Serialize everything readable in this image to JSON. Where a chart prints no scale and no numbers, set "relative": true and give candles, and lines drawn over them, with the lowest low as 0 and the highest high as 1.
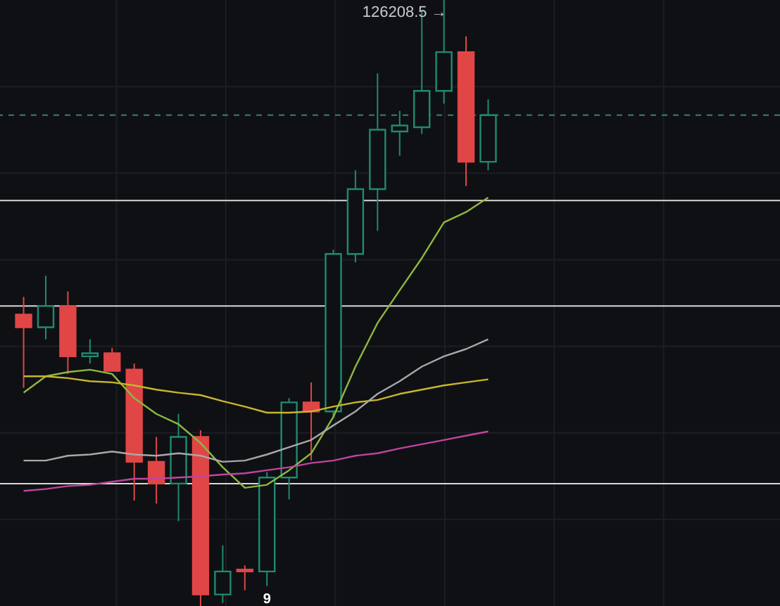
{
  "chart_data": {
    "type": "candlestick",
    "relative": true,
    "grid": true,
    "tick_labels": false,
    "categories": [
      null,
      null,
      null,
      null,
      null,
      null,
      null,
      null,
      null,
      null,
      null,
      null,
      null,
      null,
      null,
      null,
      null,
      null,
      null,
      null,
      null,
      null
    ],
    "ohlc": [
      [
        0.481,
        0.51,
        0.36,
        0.46
      ],
      [
        0.46,
        0.545,
        0.44,
        0.495
      ],
      [
        0.495,
        0.519,
        0.383,
        0.412
      ],
      [
        0.412,
        0.44,
        0.4,
        0.417
      ],
      [
        0.417,
        0.426,
        0.388,
        0.388
      ],
      [
        0.39,
        0.4,
        0.174,
        0.238
      ],
      [
        0.238,
        0.279,
        0.169,
        0.202
      ],
      [
        0.202,
        0.317,
        0.14,
        0.279
      ],
      [
        0.279,
        0.29,
        0.0,
        0.019
      ],
      [
        0.019,
        0.1,
        0.005,
        0.057
      ],
      [
        0.06,
        0.067,
        0.026,
        0.057
      ],
      [
        0.057,
        0.221,
        0.033,
        0.212
      ],
      [
        0.212,
        0.343,
        0.176,
        0.336
      ],
      [
        0.336,
        0.369,
        0.24,
        0.321
      ],
      [
        0.321,
        0.588,
        0.31,
        0.581
      ],
      [
        0.581,
        0.719,
        0.567,
        0.688
      ],
      [
        0.688,
        0.879,
        0.619,
        0.786
      ],
      [
        0.783,
        0.817,
        0.743,
        0.793
      ],
      [
        0.79,
        0.983,
        0.779,
        0.85
      ],
      [
        0.85,
        1.0,
        0.829,
        0.914
      ],
      [
        0.914,
        0.94,
        0.693,
        0.733
      ],
      [
        0.733,
        0.836,
        0.719,
        0.81
      ]
    ],
    "colors": [
      "#e04646",
      "#1f8a70",
      "#e04646",
      "#1f8a70",
      "#e04646",
      "#e04646",
      "#e04646",
      "#1f8a70",
      "#e04646",
      "#1f8a70",
      "#e04646",
      "#1f8a70",
      "#1f8a70",
      "#e04646",
      "#1f8a70",
      "#1f8a70",
      "#1f8a70",
      "#1f8a70",
      "#1f8a70",
      "#1f8a70",
      "#e04646",
      "#1f8a70"
    ],
    "series": [
      {
        "type": "line",
        "color": "#8fb83f",
        "values": [
          0.352,
          0.379,
          0.386,
          0.39,
          0.383,
          0.343,
          0.317,
          0.3,
          0.269,
          0.229,
          0.195,
          0.2,
          0.224,
          0.252,
          0.312,
          0.395,
          0.467,
          0.521,
          0.574,
          0.633,
          0.65,
          0.674
        ]
      },
      {
        "type": "line",
        "color": "#c9b62a",
        "values": [
          0.379,
          0.379,
          0.376,
          0.371,
          0.369,
          0.364,
          0.357,
          0.352,
          0.348,
          0.338,
          0.329,
          0.319,
          0.319,
          0.321,
          0.329,
          0.336,
          0.34,
          0.35,
          0.357,
          0.364,
          0.369,
          0.374
        ]
      },
      {
        "type": "line",
        "color": "#a8a8a8",
        "values": [
          0.24,
          0.24,
          0.248,
          0.25,
          0.255,
          0.25,
          0.248,
          0.252,
          0.248,
          0.238,
          0.24,
          0.25,
          0.262,
          0.274,
          0.298,
          0.321,
          0.35,
          0.371,
          0.395,
          0.412,
          0.424,
          0.44
        ]
      },
      {
        "type": "line",
        "color": "#c0449e",
        "values": [
          0.19,
          0.193,
          0.198,
          0.2,
          0.205,
          0.21,
          0.21,
          0.212,
          0.214,
          0.217,
          0.219,
          0.224,
          0.229,
          0.236,
          0.24,
          0.248,
          0.252,
          0.26,
          0.267,
          0.274,
          0.281,
          0.288
        ]
      }
    ],
    "ref_lines": [
      {
        "axis": "y",
        "value": 0.669,
        "color": "#d8d8d8"
      },
      {
        "axis": "y",
        "value": 0.495,
        "color": "#d8d8d8"
      },
      {
        "axis": "y",
        "value": 0.202,
        "color": "#d8d8d8"
      },
      {
        "axis": "y",
        "value": 0.81,
        "color": "#3d7f70",
        "line_style": "dashed"
      }
    ],
    "annotations": [
      "126208.5 →",
      "9"
    ]
  }
}
